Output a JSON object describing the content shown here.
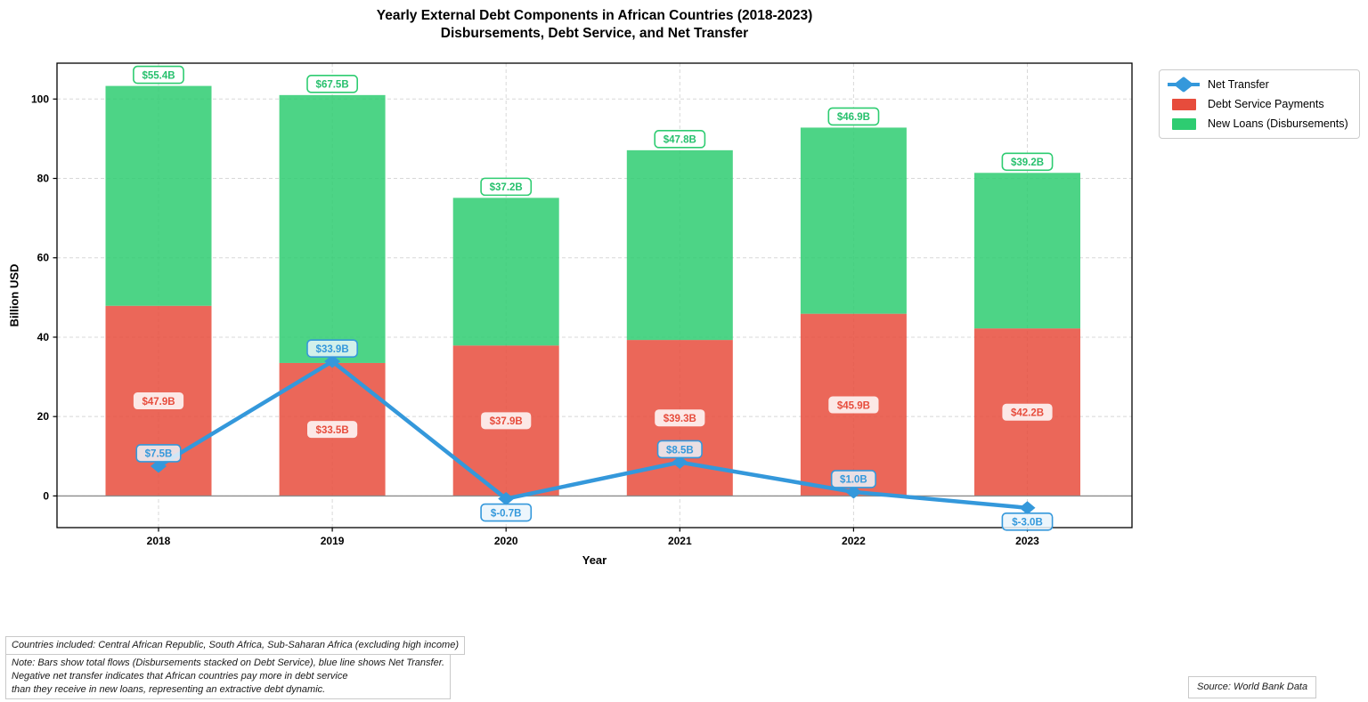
{
  "title": "Yearly External Debt Components in African Countries (2018-2023)",
  "subtitle": "Disbursements, Debt Service, and Net Transfer",
  "axes": {
    "x_label": "Year",
    "y_label": "Billion USD",
    "y_ticks": [
      0,
      20,
      40,
      60,
      80,
      100
    ]
  },
  "legend": {
    "items": [
      {
        "label": "Net Transfer",
        "swatch": "line-with-diamond-marker",
        "color": "#3498db"
      },
      {
        "label": "Debt Service Payments",
        "swatch": "filled-box",
        "color": "#e74c3c"
      },
      {
        "label": "New Loans (Disbursements)",
        "swatch": "filled-box",
        "color": "#2ecc71"
      }
    ]
  },
  "chart_data": {
    "type": "bar",
    "subtype": "stacked bars with line overlay",
    "title": "Yearly External Debt Components in African Countries (2018-2023)",
    "subtitle": "Disbursements, Debt Service, and Net Transfer",
    "xlabel": "Year",
    "ylabel": "Billion USD",
    "categories": [
      "2018",
      "2019",
      "2020",
      "2021",
      "2022",
      "2023"
    ],
    "series": [
      {
        "name": "Debt Service Payments",
        "type": "bar",
        "stack_order": 1,
        "color": "#e74c3c",
        "values": [
          47.9,
          33.5,
          37.9,
          39.3,
          45.9,
          42.2
        ],
        "labels": [
          "$47.9B",
          "$33.5B",
          "$37.9B",
          "$39.3B",
          "$45.9B",
          "$42.2B"
        ]
      },
      {
        "name": "New Loans (Disbursements)",
        "type": "bar",
        "stack_order": 2,
        "color": "#2ecc71",
        "values": [
          55.4,
          67.5,
          37.2,
          47.8,
          46.9,
          39.2
        ],
        "labels": [
          "$55.4B",
          "$67.5B",
          "$37.2B",
          "$47.8B",
          "$46.9B",
          "$39.2B"
        ]
      },
      {
        "name": "Net Transfer",
        "type": "line",
        "marker": "diamond",
        "color": "#3498db",
        "values": [
          7.5,
          33.9,
          -0.7,
          8.5,
          1.0,
          -3.0
        ],
        "labels": [
          "$7.5B",
          "$33.9B",
          "$-0.7B",
          "$8.5B",
          "$1.0B",
          "$-3.0B"
        ]
      }
    ],
    "ylim": [
      -8,
      109
    ],
    "grid": "dashed, both axes",
    "zero_line": true,
    "legend_position": "outside upper right"
  },
  "footnotes": {
    "countries": "Countries included: Central African Republic, South Africa, Sub-Saharan Africa (excluding high income)",
    "note": "Note: Bars show total flows (Disbursements stacked on Debt Service), blue line shows Net Transfer.\nNegative net transfer indicates that African countries pay more in debt service\nthan they receive in new loans, representing an extractive debt dynamic.",
    "source": "Source: World Bank Data"
  },
  "colors": {
    "debt_service": "#e74c3c",
    "disbursements": "#2ecc71",
    "net_transfer": "#3498db",
    "grid": "#cccccc",
    "zero_line": "#8c8c8c",
    "frame": "#000000"
  }
}
